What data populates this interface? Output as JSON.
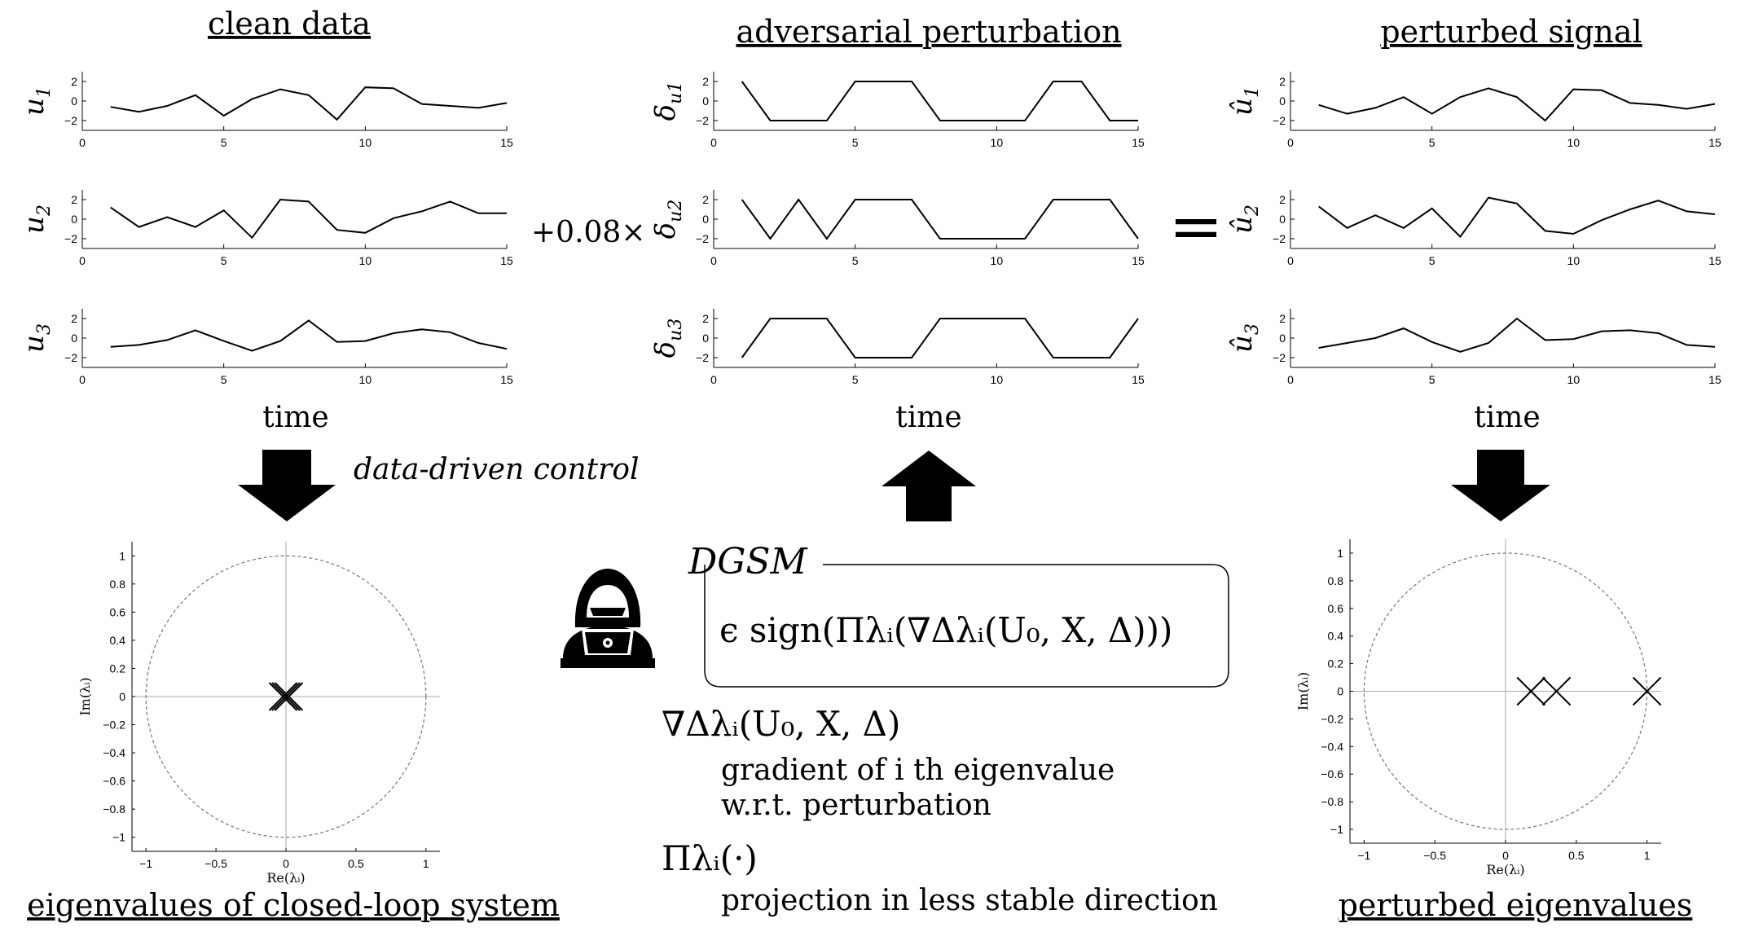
{
  "headings": {
    "clean": "clean data",
    "perturbation": "adversarial perturbation",
    "perturbed": "perturbed signal",
    "eig_clean": "eigenvalues of closed-loop system",
    "eig_perturbed": "perturbed eigenvalues"
  },
  "operators": {
    "scale": "+0.08×",
    "equals": "="
  },
  "labels": {
    "data_driven": "data-driven control",
    "dgsm": "DGSM",
    "dgsm_formula": "ϵ sign(Πλᵢ(∇Δλᵢ(U₀, X, Δ)))",
    "grad_symbol": "∇Δλᵢ(U₀, X, Δ)",
    "grad_desc_1": "gradient of  i th eigenvalue",
    "grad_desc_2": "w.r.t. perturbation",
    "proj_symbol": "Πλᵢ(·)",
    "proj_desc": "projection in less stable direction"
  },
  "icons": {
    "down_arrow": "down-arrow-icon",
    "up_arrow": "up-arrow-icon",
    "hacker": "hacker-icon"
  },
  "chart_data": [
    {
      "type": "line",
      "panel": "clean",
      "xlabel": "time",
      "x": [
        1,
        2,
        3,
        4,
        5,
        6,
        7,
        8,
        9,
        10,
        11,
        12,
        13,
        14,
        15
      ],
      "xlim": [
        0,
        15
      ],
      "xticks": [
        0,
        5,
        10,
        15
      ],
      "ylim": [
        -3,
        3
      ],
      "yticks": [
        2,
        0,
        -2
      ],
      "series": [
        {
          "name": "u1",
          "values": [
            -0.6,
            -1.1,
            -0.5,
            0.6,
            -1.5,
            0.2,
            1.2,
            0.6,
            -1.9,
            1.4,
            1.3,
            -0.3,
            -0.5,
            -0.7,
            -0.2
          ]
        },
        {
          "name": "u2",
          "values": [
            1.2,
            -0.8,
            0.2,
            -0.8,
            0.9,
            -1.9,
            2.0,
            1.8,
            -1.1,
            -1.4,
            0.1,
            0.8,
            1.8,
            0.6,
            0.6
          ]
        },
        {
          "name": "u3",
          "values": [
            -0.9,
            -0.7,
            -0.2,
            0.8,
            -0.3,
            -1.3,
            -0.3,
            1.8,
            -0.4,
            -0.3,
            0.5,
            0.9,
            0.6,
            -0.5,
            -1.1
          ]
        }
      ]
    },
    {
      "type": "line",
      "panel": "perturbation",
      "xlabel": "time",
      "x": [
        1,
        2,
        3,
        4,
        5,
        6,
        7,
        8,
        9,
        10,
        11,
        12,
        13,
        14,
        15
      ],
      "xlim": [
        0,
        15
      ],
      "xticks": [
        0,
        5,
        10,
        15
      ],
      "ylim": [
        -3,
        3
      ],
      "yticks": [
        2,
        0,
        -2
      ],
      "series": [
        {
          "name": "δu1",
          "values": [
            2,
            -2,
            -2,
            -2,
            2,
            2,
            2,
            -2,
            -2,
            -2,
            -2,
            2,
            2,
            -2,
            -2
          ]
        },
        {
          "name": "δu2",
          "values": [
            2,
            -2,
            2,
            -2,
            2,
            2,
            2,
            -2,
            -2,
            -2,
            -2,
            2,
            2,
            2,
            -2
          ]
        },
        {
          "name": "δu3",
          "values": [
            -2,
            2,
            2,
            2,
            -2,
            -2,
            -2,
            2,
            2,
            2,
            2,
            -2,
            -2,
            -2,
            2
          ]
        }
      ]
    },
    {
      "type": "line",
      "panel": "perturbed",
      "xlabel": "time",
      "x": [
        1,
        2,
        3,
        4,
        5,
        6,
        7,
        8,
        9,
        10,
        11,
        12,
        13,
        14,
        15
      ],
      "xlim": [
        0,
        15
      ],
      "xticks": [
        0,
        5,
        10,
        15
      ],
      "ylim": [
        -3,
        3
      ],
      "yticks": [
        2,
        0,
        -2
      ],
      "series": [
        {
          "name": "û1",
          "values": [
            -0.4,
            -1.3,
            -0.7,
            0.4,
            -1.3,
            0.4,
            1.3,
            0.4,
            -2.0,
            1.2,
            1.1,
            -0.2,
            -0.4,
            -0.8,
            -0.3
          ]
        },
        {
          "name": "û2",
          "values": [
            1.3,
            -0.9,
            0.4,
            -0.9,
            1.1,
            -1.8,
            2.2,
            1.6,
            -1.2,
            -1.5,
            -0.1,
            1.0,
            1.9,
            0.8,
            0.5
          ]
        },
        {
          "name": "û3",
          "values": [
            -1.0,
            -0.5,
            0.0,
            1.0,
            -0.4,
            -1.4,
            -0.5,
            2.0,
            -0.2,
            -0.1,
            0.7,
            0.8,
            0.5,
            -0.7,
            -0.9
          ]
        }
      ]
    },
    {
      "type": "scatter",
      "panel": "eig_clean",
      "xlabel": "Re(λᵢ)",
      "ylabel": "Im(λᵢ)",
      "xlim": [
        -1.1,
        1.1
      ],
      "ylim": [
        -1.1,
        1.1
      ],
      "xticks": [
        -1,
        -0.5,
        0,
        0.5,
        1
      ],
      "yticks": [
        1,
        0.8,
        0.6,
        0.4,
        0.2,
        0,
        -0.2,
        -0.4,
        -0.6,
        -0.8,
        -1
      ],
      "unit_circle": true,
      "marker": "x",
      "points": [
        [
          -0.02,
          0
        ],
        [
          0,
          0
        ],
        [
          0.02,
          0
        ]
      ]
    },
    {
      "type": "scatter",
      "panel": "eig_perturbed",
      "xlabel": "Re(λᵢ)",
      "ylabel": "Im(λᵢ)",
      "xlim": [
        -1.1,
        1.1
      ],
      "ylim": [
        -1.1,
        1.1
      ],
      "xticks": [
        -1,
        -0.5,
        0,
        0.5,
        1
      ],
      "yticks": [
        1,
        0.8,
        0.6,
        0.4,
        0.2,
        0,
        -0.2,
        -0.4,
        -0.6,
        -0.8,
        -1
      ],
      "unit_circle": true,
      "marker": "x",
      "points": [
        [
          0.18,
          0
        ],
        [
          0.36,
          0
        ],
        [
          1.0,
          0
        ]
      ]
    }
  ]
}
